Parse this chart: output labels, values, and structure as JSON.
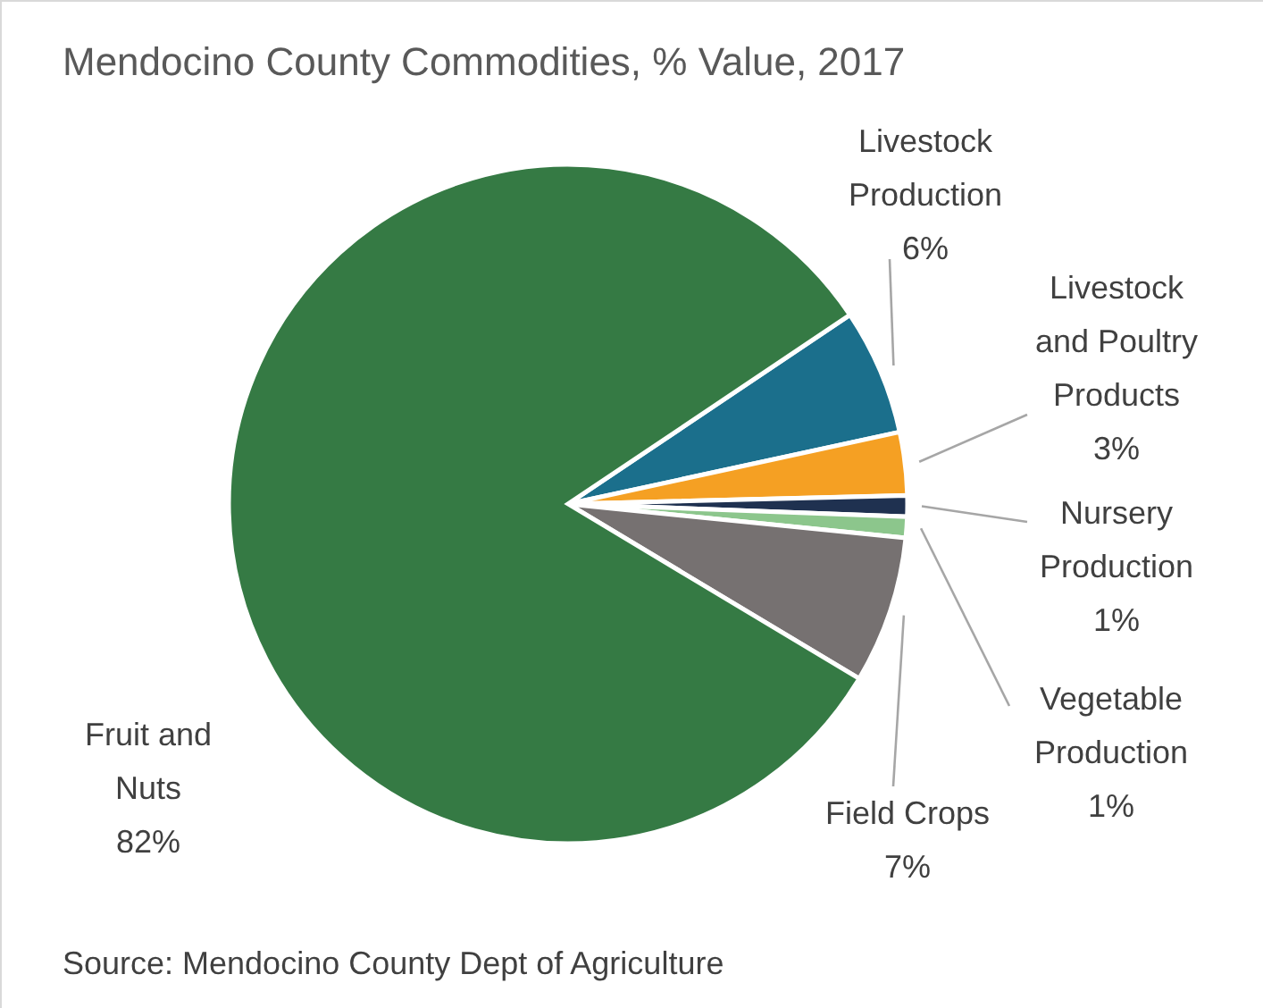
{
  "chart_data": {
    "type": "pie",
    "title": "Mendocino County Commodities, % Value, 2017",
    "categories": [
      "Livestock Production",
      "Livestock and Poultry Products",
      "Nursery Production",
      "Vegetable Production",
      "Field Crops",
      "Fruit and Nuts"
    ],
    "values": [
      6,
      3,
      1,
      1,
      7,
      82
    ],
    "value_labels": [
      "6%",
      "3%",
      "1%",
      "1%",
      "7%",
      "82%"
    ],
    "colors": [
      "#1b6f8c",
      "#f5a023",
      "#1f3150",
      "#8cc68c",
      "#767171",
      "#357a44"
    ],
    "annotations": [
      "Source: Mendocino County Dept of Agriculture"
    ]
  }
}
